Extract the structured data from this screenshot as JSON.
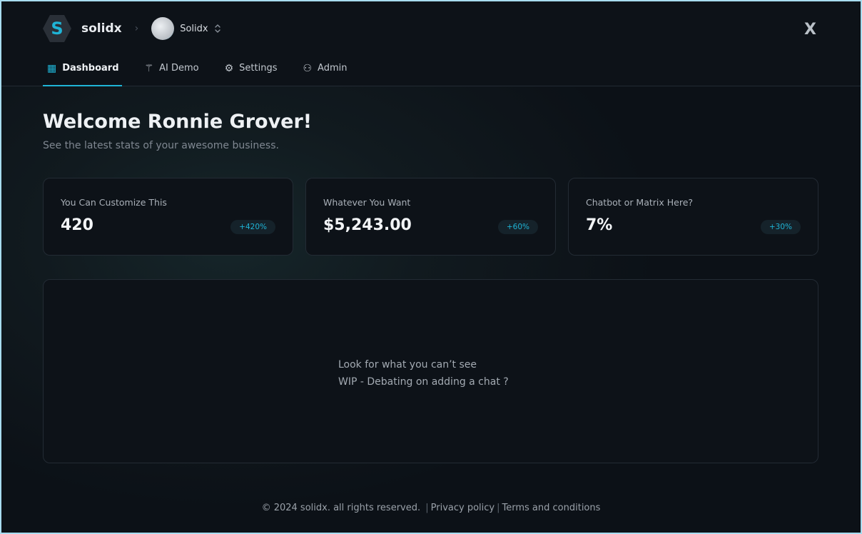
{
  "header": {
    "brand": "solidx",
    "logo_letter": "S",
    "breadcrumb_sep": "›",
    "org": "Solidx",
    "right_icon": "X"
  },
  "nav": {
    "tabs": [
      {
        "label": "Dashboard",
        "icon": "grid-icon",
        "glyph": "▦"
      },
      {
        "label": "AI Demo",
        "icon": "magic-wand-icon",
        "glyph": "⚚"
      },
      {
        "label": "Settings",
        "icon": "gear-icon",
        "glyph": "⚙"
      },
      {
        "label": "Admin",
        "icon": "user-gear-icon",
        "glyph": "⚇"
      }
    ]
  },
  "main": {
    "title": "Welcome Ronnie Grover!",
    "subtitle": "See the latest stats of your awesome business.",
    "cards": [
      {
        "label": "You Can Customize This",
        "value": "420",
        "badge": "+420%"
      },
      {
        "label": "Whatever You Want",
        "value": "$5,243.00",
        "badge": "+60%"
      },
      {
        "label": "Chatbot or Matrix Here?",
        "value": "7%",
        "badge": "+30%"
      }
    ],
    "panel": {
      "line1": "Look for what you can’t see",
      "line2": "WIP - Debating on adding a chat ?"
    }
  },
  "footer": {
    "copyright": "© 2024 solidx. all rights reserved.",
    "sep": "|",
    "privacy": "Privacy policy",
    "terms": "Terms and conditions"
  },
  "colors": {
    "accent": "#1fb4d6",
    "background": "#0c1117"
  }
}
